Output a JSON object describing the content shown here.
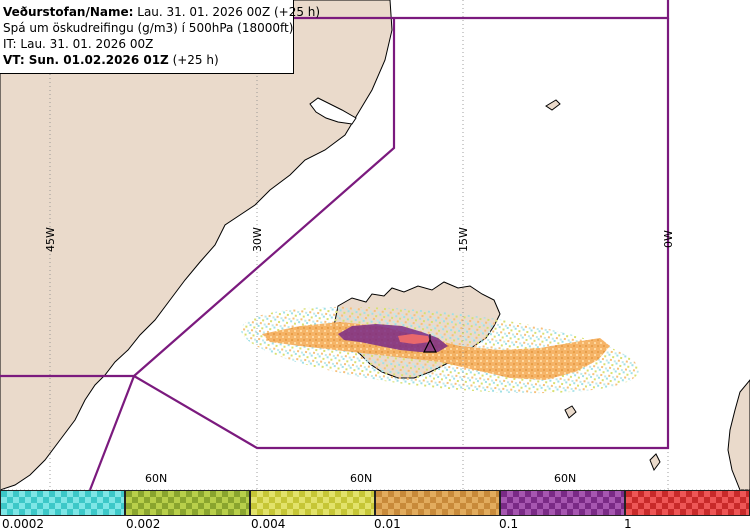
{
  "header": {
    "line1_bold": "Veðurstofan/Name:",
    "line1_rest": " Lau. 31. 01. 2026 00Z (+25 h)",
    "line2": "Spá um öskudreifingu (g/m3) í 500hPa (18000ft)",
    "line3": "IT: Lau. 31. 01. 2026 00Z",
    "line4_bold": "VT: Sun. 01.02.2026 01Z",
    "line4_rest": " (+25 h)"
  },
  "grid": {
    "lon_labels": [
      "45W",
      "30W",
      "15W",
      "0W"
    ],
    "lat_labels": [
      "60N",
      "60N",
      "60N"
    ]
  },
  "legend": {
    "segments": [
      {
        "color": "#3cc8c8",
        "alt": "#7ee6e6"
      },
      {
        "color": "#8aa52e",
        "alt": "#b8cf4a"
      },
      {
        "color": "#c6c636",
        "alt": "#e2e26a"
      },
      {
        "color": "#c88a3a",
        "alt": "#e2ac5e"
      },
      {
        "color": "#7a2a86",
        "alt": "#a656b0"
      },
      {
        "color": "#c82a2a",
        "alt": "#ee5656"
      }
    ],
    "labels": [
      "0.0002",
      "0.002",
      "0.004",
      "0.01",
      "0.1",
      "1"
    ]
  },
  "colors": {
    "land": "#eadacb",
    "sea": "#ffffff",
    "boundary": "#7b1a7e",
    "ash_orange": "#f5b060",
    "ash_purple": "#7a2a86",
    "ash_red": "#ee6a6a"
  }
}
